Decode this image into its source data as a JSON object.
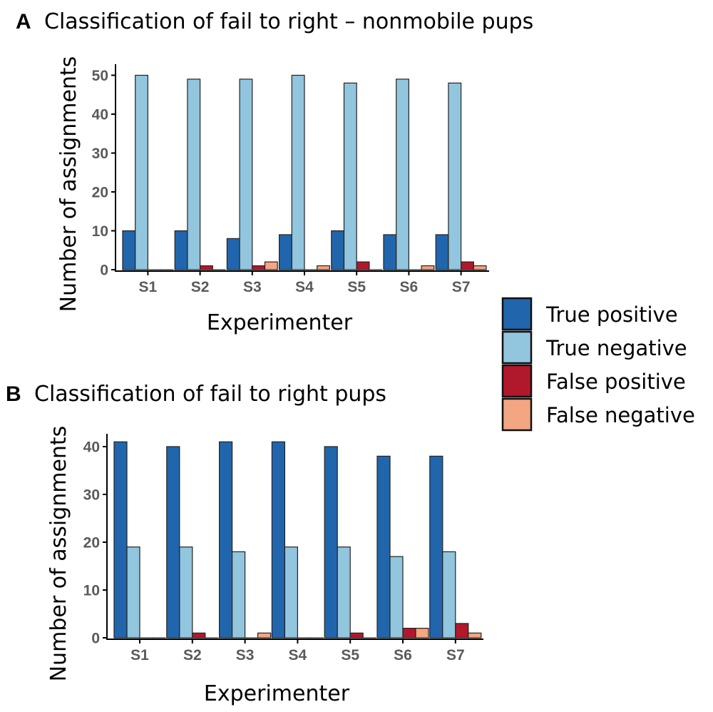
{
  "legend": [
    {
      "label": "True positive",
      "color": "#2166ac"
    },
    {
      "label": "True negative",
      "color": "#92c5de"
    },
    {
      "label": "False positive",
      "color": "#b2182b"
    },
    {
      "label": "False negative",
      "color": "#f4a582"
    }
  ],
  "chart_data": [
    {
      "type": "bar",
      "panel": "A",
      "title": "Classification of fail to right – nonmobile pups",
      "xlabel": "Experimenter",
      "ylabel": "Number of assignments",
      "categories": [
        "S1",
        "S2",
        "S3",
        "S4",
        "S5",
        "S6",
        "S7"
      ],
      "ylim": [
        0,
        52
      ],
      "yticks": [
        0,
        10,
        20,
        30,
        40,
        50
      ],
      "series": [
        {
          "name": "True positive",
          "values": [
            10,
            10,
            8,
            9,
            10,
            9,
            9
          ]
        },
        {
          "name": "True negative",
          "values": [
            50,
            49,
            49,
            50,
            48,
            49,
            48
          ]
        },
        {
          "name": "False positive",
          "values": [
            0,
            1,
            1,
            0,
            2,
            0,
            2
          ]
        },
        {
          "name": "False negative",
          "values": [
            0,
            0,
            2,
            1,
            0,
            1,
            1
          ]
        }
      ]
    },
    {
      "type": "bar",
      "panel": "B",
      "title": "Classification of fail to right pups",
      "xlabel": "Experimenter",
      "ylabel": "Number of assignments",
      "categories": [
        "S1",
        "S2",
        "S3",
        "S4",
        "S5",
        "S6",
        "S7"
      ],
      "ylim": [
        0,
        42
      ],
      "yticks": [
        0,
        10,
        20,
        30,
        40
      ],
      "series": [
        {
          "name": "True positive",
          "values": [
            41,
            40,
            41,
            41,
            40,
            38,
            38
          ]
        },
        {
          "name": "True negative",
          "values": [
            19,
            19,
            18,
            19,
            19,
            17,
            18
          ]
        },
        {
          "name": "False positive",
          "values": [
            0,
            1,
            0,
            0,
            1,
            2,
            3
          ]
        },
        {
          "name": "False negative",
          "values": [
            0,
            0,
            1,
            0,
            0,
            2,
            1
          ]
        }
      ]
    }
  ]
}
